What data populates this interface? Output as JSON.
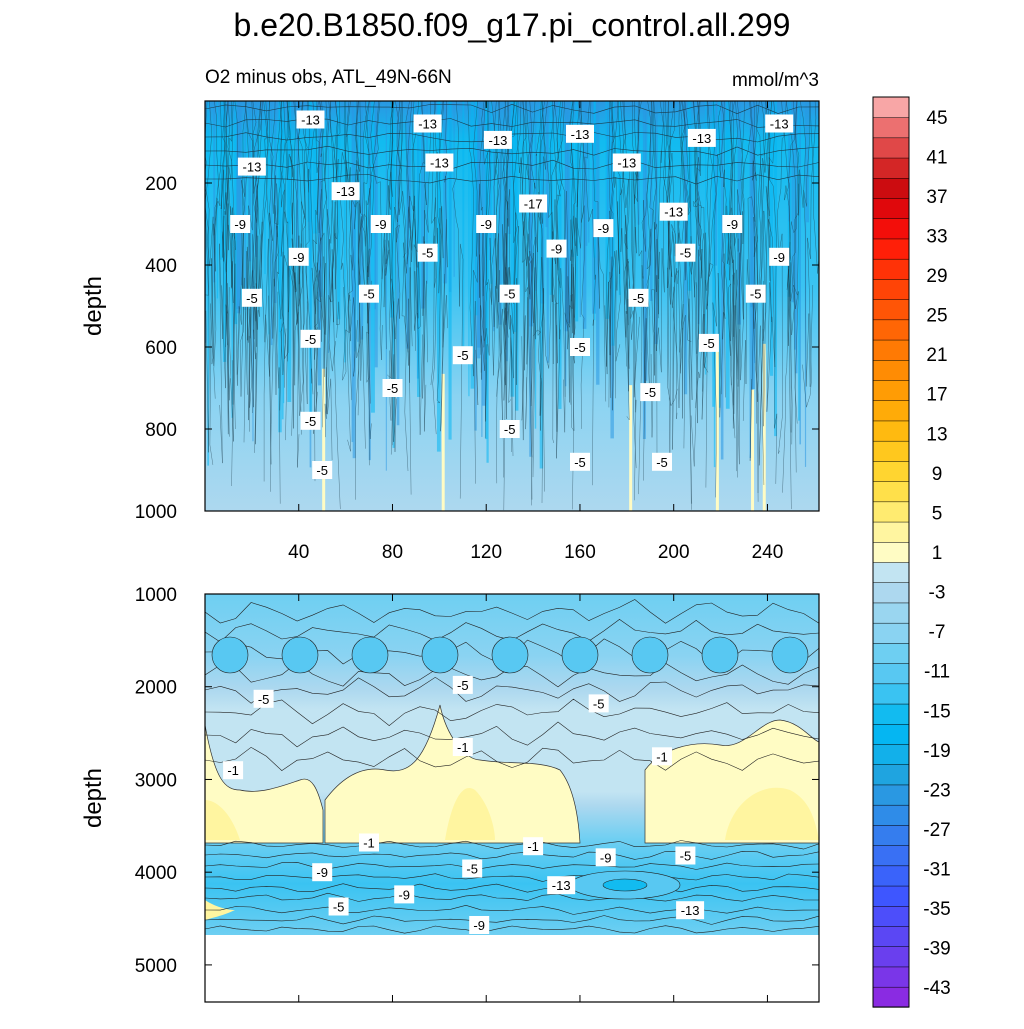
{
  "chart_data": {
    "type": "contour",
    "title": "b.e20.B1850.f09_g17.pi_control.all.299",
    "subtitle_left": "O2 minus obs, ATL_49N-66N",
    "subtitle_right": "mmol/m^3",
    "panels": [
      {
        "ylabel": "depth",
        "xlim": [
          0,
          262
        ],
        "ylim": [
          0,
          1000
        ],
        "x_ticks": [
          40,
          80,
          120,
          160,
          200,
          240
        ],
        "y_ticks": [
          200,
          400,
          600,
          800,
          1000
        ],
        "contour_labels": [
          {
            "x": 45,
            "y": 45,
            "t": "-13"
          },
          {
            "x": 95,
            "y": 55,
            "t": "-13"
          },
          {
            "x": 125,
            "y": 95,
            "t": "-13"
          },
          {
            "x": 160,
            "y": 80,
            "t": "-13"
          },
          {
            "x": 212,
            "y": 90,
            "t": "-13"
          },
          {
            "x": 245,
            "y": 55,
            "t": "-13"
          },
          {
            "x": 20,
            "y": 160,
            "t": "-13"
          },
          {
            "x": 100,
            "y": 150,
            "t": "-13"
          },
          {
            "x": 180,
            "y": 150,
            "t": "-13"
          },
          {
            "x": 60,
            "y": 220,
            "t": "-13"
          },
          {
            "x": 140,
            "y": 250,
            "t": "-17"
          },
          {
            "x": 200,
            "y": 270,
            "t": "-13"
          },
          {
            "x": 15,
            "y": 300,
            "t": "-9"
          },
          {
            "x": 75,
            "y": 300,
            "t": "-9"
          },
          {
            "x": 120,
            "y": 300,
            "t": "-9"
          },
          {
            "x": 170,
            "y": 310,
            "t": "-9"
          },
          {
            "x": 225,
            "y": 300,
            "t": "-9"
          },
          {
            "x": 40,
            "y": 380,
            "t": "-9"
          },
          {
            "x": 95,
            "y": 370,
            "t": "-5"
          },
          {
            "x": 150,
            "y": 360,
            "t": "-9"
          },
          {
            "x": 205,
            "y": 370,
            "t": "-5"
          },
          {
            "x": 245,
            "y": 380,
            "t": "-9"
          },
          {
            "x": 20,
            "y": 480,
            "t": "-5"
          },
          {
            "x": 70,
            "y": 470,
            "t": "-5"
          },
          {
            "x": 130,
            "y": 470,
            "t": "-5"
          },
          {
            "x": 185,
            "y": 480,
            "t": "-5"
          },
          {
            "x": 235,
            "y": 470,
            "t": "-5"
          },
          {
            "x": 45,
            "y": 580,
            "t": "-5"
          },
          {
            "x": 110,
            "y": 620,
            "t": "-5"
          },
          {
            "x": 160,
            "y": 600,
            "t": "-5"
          },
          {
            "x": 215,
            "y": 590,
            "t": "-5"
          },
          {
            "x": 80,
            "y": 700,
            "t": "-5"
          },
          {
            "x": 190,
            "y": 710,
            "t": "-5"
          },
          {
            "x": 45,
            "y": 780,
            "t": "-5"
          },
          {
            "x": 130,
            "y": 800,
            "t": "-5"
          },
          {
            "x": 160,
            "y": 880,
            "t": "-5"
          },
          {
            "x": 195,
            "y": 880,
            "t": "-5"
          },
          {
            "x": 50,
            "y": 900,
            "t": "-5"
          }
        ]
      },
      {
        "ylabel": "depth",
        "xlim": [
          0,
          262
        ],
        "ylim": [
          1000,
          5400
        ],
        "data_bottom": 4650,
        "y_ticks": [
          1000,
          2000,
          3000,
          4000,
          5000
        ],
        "contour_labels": [
          {
            "x": 25,
            "y": 2130,
            "t": "-5"
          },
          {
            "x": 110,
            "y": 1980,
            "t": "-5"
          },
          {
            "x": 168,
            "y": 2180,
            "t": "-5"
          },
          {
            "x": 12,
            "y": 2900,
            "t": "-1"
          },
          {
            "x": 110,
            "y": 2650,
            "t": "-1"
          },
          {
            "x": 195,
            "y": 2750,
            "t": "-1"
          },
          {
            "x": 70,
            "y": 3680,
            "t": "-1"
          },
          {
            "x": 140,
            "y": 3720,
            "t": "-1"
          },
          {
            "x": 50,
            "y": 4000,
            "t": "-9"
          },
          {
            "x": 114,
            "y": 3960,
            "t": "-5"
          },
          {
            "x": 171,
            "y": 3840,
            "t": "-9"
          },
          {
            "x": 205,
            "y": 3820,
            "t": "-5"
          },
          {
            "x": 152,
            "y": 4140,
            "t": "-13"
          },
          {
            "x": 85,
            "y": 4240,
            "t": "-9"
          },
          {
            "x": 57,
            "y": 4370,
            "t": "-5"
          },
          {
            "x": 117,
            "y": 4570,
            "t": "-9"
          },
          {
            "x": 207,
            "y": 4410,
            "t": "-13"
          }
        ]
      }
    ],
    "colorbar": {
      "levels": [
        -45,
        -43,
        -41,
        -39,
        -37,
        -35,
        -33,
        -31,
        -29,
        -27,
        -25,
        -23,
        -21,
        -19,
        -17,
        -15,
        -13,
        -11,
        -9,
        -7,
        -5,
        -3,
        -1,
        1,
        3,
        5,
        7,
        9,
        11,
        13,
        15,
        17,
        19,
        21,
        23,
        25,
        27,
        29,
        31,
        33,
        35,
        37,
        39,
        41,
        43,
        45,
        47
      ],
      "tick_labels": [
        "45",
        "41",
        "37",
        "33",
        "29",
        "25",
        "21",
        "17",
        "13",
        "9",
        "5",
        "1",
        "-3",
        "-7",
        "-11",
        "-15",
        "-19",
        "-23",
        "-27",
        "-31",
        "-35",
        "-39",
        "-43"
      ],
      "colors": [
        "#8a2be2",
        "#7a36e8",
        "#6a3fee",
        "#5b47f4",
        "#4d4efa",
        "#3e56ff",
        "#3a63fa",
        "#3970f4",
        "#357dee",
        "#2f8ce8",
        "#2a98e2",
        "#1fa4e0",
        "#12b0ea",
        "#05b6f2",
        "#12bbf0",
        "#3ac3f2",
        "#58c8f2",
        "#6ecff2",
        "#8ad3f2",
        "#9ad6f0",
        "#add8ef",
        "#c2e4f2",
        "#fffcc4",
        "#fff5a0",
        "#ffeb70",
        "#ffe04a",
        "#ffd530",
        "#ffc81e",
        "#ffba10",
        "#ffab08",
        "#ff9c05",
        "#ff8c04",
        "#ff7a04",
        "#ff6605",
        "#ff5506",
        "#ff4406",
        "#ff3207",
        "#ff1f08",
        "#f30e0a",
        "#e0080c",
        "#cc0c10",
        "#d42626",
        "#e04848",
        "#ec7070",
        "#f8a6a6"
      ]
    }
  }
}
